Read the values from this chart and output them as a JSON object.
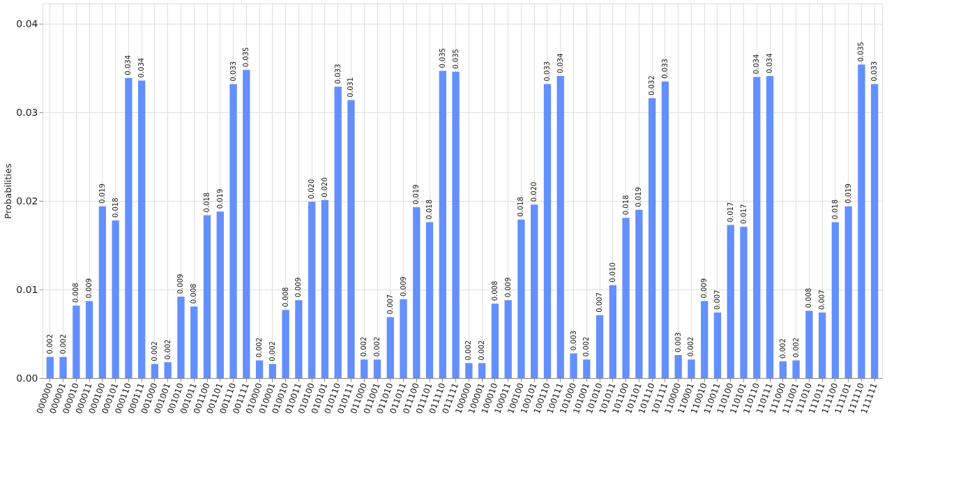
{
  "chart_data": {
    "type": "bar",
    "ylabel": "Probabilities",
    "categories": [
      "000000",
      "000001",
      "000010",
      "000011",
      "000100",
      "000101",
      "000110",
      "000111",
      "001000",
      "001001",
      "001010",
      "001011",
      "001100",
      "001101",
      "001110",
      "001111",
      "010000",
      "010001",
      "010010",
      "010011",
      "010100",
      "010101",
      "010110",
      "010111",
      "011000",
      "011001",
      "011010",
      "011011",
      "011100",
      "011101",
      "011110",
      "011111",
      "100000",
      "100001",
      "100010",
      "100011",
      "100100",
      "100101",
      "100110",
      "100111",
      "101000",
      "101001",
      "101010",
      "101011",
      "101100",
      "101101",
      "101110",
      "101111",
      "110000",
      "110001",
      "110010",
      "110011",
      "110100",
      "110101",
      "110110",
      "110111",
      "111000",
      "111001",
      "111010",
      "111011",
      "111100",
      "111101",
      "111110",
      "111111"
    ],
    "values": [
      0.0024,
      0.0024,
      0.0082,
      0.0087,
      0.0194,
      0.0178,
      0.0339,
      0.0336,
      0.0016,
      0.0018,
      0.0092,
      0.0081,
      0.0184,
      0.0188,
      0.0332,
      0.0348,
      0.002,
      0.0016,
      0.0077,
      0.0088,
      0.0199,
      0.0201,
      0.0329,
      0.0314,
      0.0021,
      0.0021,
      0.0069,
      0.0089,
      0.0193,
      0.0176,
      0.0347,
      0.0346,
      0.0017,
      0.0017,
      0.0084,
      0.0088,
      0.0179,
      0.0196,
      0.0332,
      0.0341,
      0.0028,
      0.0021,
      0.0071,
      0.0105,
      0.0181,
      0.019,
      0.0316,
      0.0335,
      0.0026,
      0.0021,
      0.0087,
      0.0074,
      0.0173,
      0.0171,
      0.034,
      0.0341,
      0.0019,
      0.002,
      0.0076,
      0.0074,
      0.0176,
      0.0194,
      0.0354,
      0.0332
    ],
    "value_labels": [
      "0.002",
      "0.002",
      "0.008",
      "0.009",
      "0.019",
      "0.018",
      "0.034",
      "0.034",
      "0.002",
      "0.002",
      "0.009",
      "0.008",
      "0.018",
      "0.019",
      "0.033",
      "0.035",
      "0.002",
      "0.002",
      "0.008",
      "0.009",
      "0.020",
      "0.020",
      "0.033",
      "0.031",
      "0.002",
      "0.002",
      "0.007",
      "0.009",
      "0.019",
      "0.018",
      "0.035",
      "0.035",
      "0.002",
      "0.002",
      "0.008",
      "0.009",
      "0.018",
      "0.020",
      "0.033",
      "0.034",
      "0.003",
      "0.002",
      "0.007",
      "0.010",
      "0.018",
      "0.019",
      "0.032",
      "0.033",
      "0.003",
      "0.002",
      "0.009",
      "0.007",
      "0.017",
      "0.017",
      "0.034",
      "0.034",
      "0.002",
      "0.002",
      "0.008",
      "0.007",
      "0.018",
      "0.019",
      "0.035",
      "0.033"
    ],
    "color": "#648fff",
    "ylim": [
      0,
      0.0423
    ],
    "yticks": [
      {
        "value": 0,
        "label": "0.00"
      },
      {
        "value": 0.01,
        "label": "0.01"
      },
      {
        "value": 0.02,
        "label": "0.02"
      },
      {
        "value": 0.03,
        "label": "0.03"
      },
      {
        "value": 0.04,
        "label": "0.04"
      }
    ],
    "grid": true
  }
}
